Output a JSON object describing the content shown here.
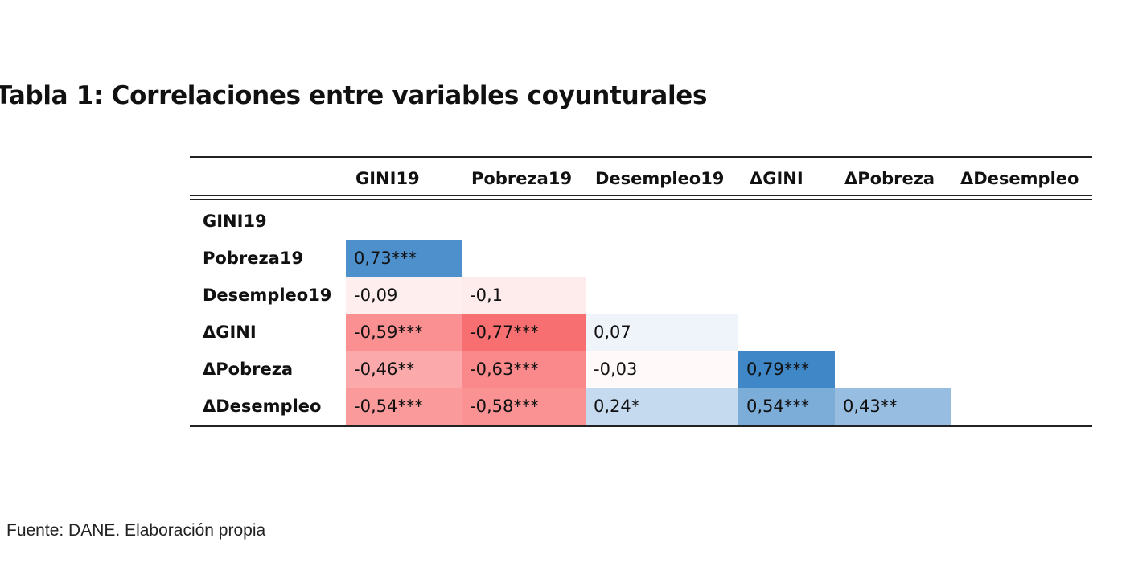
{
  "title": "Tabla 1: Correlaciones entre variables coyunturales",
  "columns": [
    "GINI19",
    "Pobreza19",
    "Desempleo19",
    "ΔGINI",
    "ΔPobreza",
    "ΔDesempleo"
  ],
  "rows": [
    {
      "label": "GINI19",
      "cells": []
    },
    {
      "label": "Pobreza19",
      "cells": [
        {
          "text": "0,73***",
          "value": 0.73
        }
      ]
    },
    {
      "label": "Desempleo19",
      "cells": [
        {
          "text": "-0,09",
          "value": -0.09
        },
        {
          "text": "-0,1",
          "value": -0.1
        }
      ]
    },
    {
      "label": "ΔGINI",
      "cells": [
        {
          "text": "-0,59***",
          "value": -0.59
        },
        {
          "text": "-0,77***",
          "value": -0.77
        },
        {
          "text": "0,07",
          "value": 0.07
        }
      ]
    },
    {
      "label": "ΔPobreza",
      "cells": [
        {
          "text": "-0,46**",
          "value": -0.46
        },
        {
          "text": "-0,63***",
          "value": -0.63
        },
        {
          "text": "-0,03",
          "value": -0.03
        },
        {
          "text": "0,79***",
          "value": 0.79
        }
      ]
    },
    {
      "label": "ΔDesempleo",
      "cells": [
        {
          "text": "-0,54***",
          "value": -0.54
        },
        {
          "text": "-0,58***",
          "value": -0.58
        },
        {
          "text": "0,24*",
          "value": 0.24
        },
        {
          "text": "0,54***",
          "value": 0.54
        },
        {
          "text": "0,43**",
          "value": 0.43
        }
      ]
    }
  ],
  "colors": {
    "positive": "#3d85c6",
    "negative": "#f8696b",
    "text": "#111111",
    "rule": "#222222"
  },
  "source": "Fuente: DANE. Elaboración propia"
}
